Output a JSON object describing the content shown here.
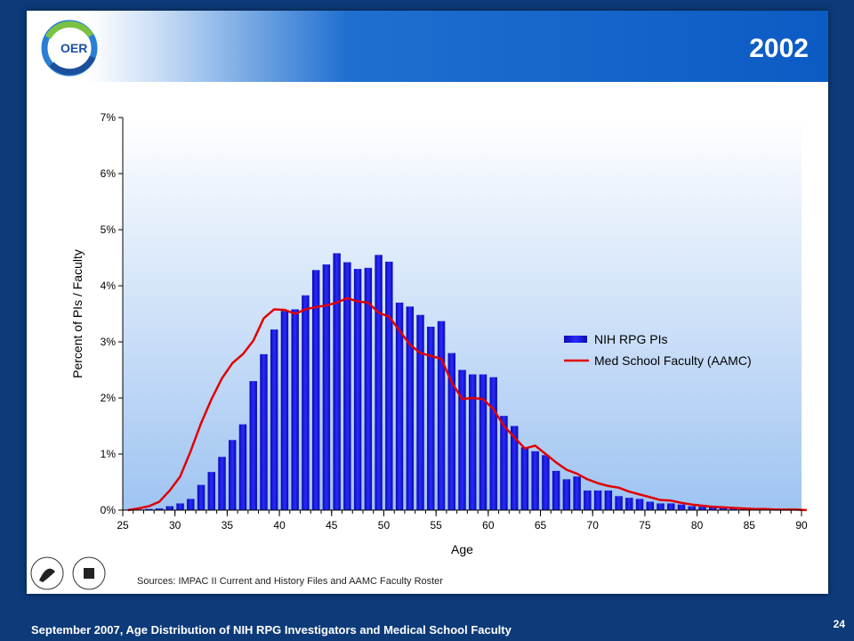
{
  "slide": {
    "year_title": "2002",
    "logo_text": "OER",
    "sources": "Sources:  IMPAC II Current  and History Files and AAMC Faculty Roster",
    "footer": "September 2007, Age Distribution of NIH RPG Investigators and Medical School Faculty",
    "page_number": "24"
  },
  "colors": {
    "bar": "#1a1ae6",
    "line": "#e00000",
    "header": "#0b5bc4",
    "frame": "#0d3a78"
  },
  "chart_data": {
    "type": "bar",
    "title": "",
    "xlabel": "Age",
    "ylabel": "Percent of PIs / Faculty",
    "xlim": [
      25,
      90
    ],
    "ylim": [
      0,
      7
    ],
    "x_ticks": [
      25,
      30,
      35,
      40,
      45,
      50,
      55,
      60,
      65,
      70,
      75,
      80,
      85,
      90
    ],
    "y_ticks": [
      "0%",
      "1%",
      "2%",
      "3%",
      "4%",
      "5%",
      "6%",
      "7%"
    ],
    "legend_position": "right",
    "series": [
      {
        "name": "NIH RPG PIs",
        "type": "bar",
        "x": [
          25,
          26,
          27,
          28,
          29,
          30,
          31,
          32,
          33,
          34,
          35,
          36,
          37,
          38,
          39,
          40,
          41,
          42,
          43,
          44,
          45,
          46,
          47,
          48,
          49,
          50,
          51,
          52,
          53,
          54,
          55,
          56,
          57,
          58,
          59,
          60,
          61,
          62,
          63,
          64,
          65,
          66,
          67,
          68,
          69,
          70,
          71,
          72,
          73,
          74,
          75,
          76,
          77,
          78,
          79,
          80,
          81,
          82,
          83,
          84,
          85,
          86,
          87,
          88,
          89
        ],
        "values": [
          0.01,
          0.01,
          0.02,
          0.03,
          0.07,
          0.12,
          0.2,
          0.45,
          0.68,
          0.95,
          1.25,
          1.53,
          2.3,
          2.78,
          3.22,
          3.55,
          3.58,
          3.83,
          4.28,
          4.38,
          4.58,
          4.42,
          4.3,
          4.32,
          4.55,
          4.43,
          3.7,
          3.63,
          3.48,
          3.27,
          3.37,
          2.8,
          2.5,
          2.42,
          2.42,
          2.37,
          1.68,
          1.5,
          1.12,
          1.05,
          0.98,
          0.7,
          0.55,
          0.6,
          0.35,
          0.35,
          0.35,
          0.25,
          0.22,
          0.2,
          0.15,
          0.12,
          0.12,
          0.1,
          0.07,
          0.06,
          0.05,
          0.04,
          0.03,
          0.03,
          0.02,
          0.02,
          0.01,
          0.01,
          0.01
        ]
      },
      {
        "name": "Med School Faculty (AAMC)",
        "type": "line",
        "x": [
          25,
          26,
          27,
          28,
          29,
          30,
          31,
          32,
          33,
          34,
          35,
          36,
          37,
          38,
          39,
          40,
          41,
          42,
          43,
          44,
          45,
          46,
          47,
          48,
          49,
          50,
          51,
          52,
          53,
          54,
          55,
          56,
          57,
          58,
          59,
          60,
          61,
          62,
          63,
          64,
          65,
          66,
          67,
          68,
          69,
          70,
          71,
          72,
          73,
          74,
          75,
          76,
          77,
          78,
          79,
          80,
          81,
          82,
          83,
          84,
          85,
          86,
          87,
          88,
          89,
          90
        ],
        "values": [
          0.0,
          0.03,
          0.07,
          0.15,
          0.35,
          0.6,
          1.05,
          1.55,
          1.98,
          2.35,
          2.62,
          2.78,
          3.02,
          3.42,
          3.58,
          3.57,
          3.5,
          3.58,
          3.62,
          3.65,
          3.7,
          3.78,
          3.72,
          3.7,
          3.52,
          3.45,
          3.2,
          2.95,
          2.8,
          2.75,
          2.7,
          2.28,
          1.98,
          2.0,
          1.98,
          1.8,
          1.5,
          1.3,
          1.1,
          1.15,
          1.0,
          0.85,
          0.72,
          0.65,
          0.55,
          0.48,
          0.43,
          0.4,
          0.33,
          0.28,
          0.23,
          0.18,
          0.17,
          0.13,
          0.1,
          0.08,
          0.06,
          0.05,
          0.04,
          0.03,
          0.02,
          0.02,
          0.01,
          0.01,
          0.01,
          0.0
        ]
      }
    ]
  }
}
